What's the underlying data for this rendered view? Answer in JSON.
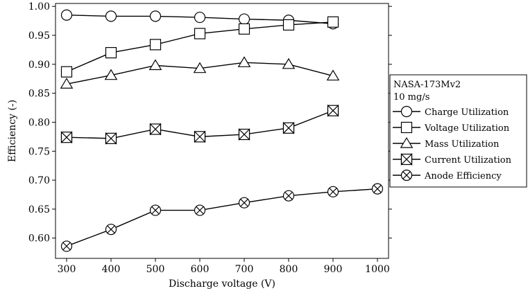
{
  "chart_data": {
    "type": "line",
    "xlabel": "Discharge voltage (V)",
    "ylabel": "Efficiency (-)",
    "xlim": [
      275,
      1025
    ],
    "ylim": [
      0.565,
      1.005
    ],
    "xticks": [
      300,
      400,
      500,
      600,
      700,
      800,
      900,
      1000
    ],
    "yticks": [
      0.6,
      0.65,
      0.7,
      0.75,
      0.8,
      0.85,
      0.9,
      0.95,
      1.0
    ],
    "legend": {
      "placement": "right",
      "title_lines": [
        "NASA-173Mv2",
        "10 mg/s"
      ]
    },
    "series": [
      {
        "name": "Charge Utilization",
        "marker": "circle",
        "x": [
          300,
          400,
          500,
          600,
          700,
          800,
          900
        ],
        "y": [
          0.985,
          0.983,
          0.983,
          0.981,
          0.978,
          0.976,
          0.97
        ]
      },
      {
        "name": "Voltage Utilization",
        "marker": "square",
        "x": [
          300,
          400,
          500,
          600,
          700,
          800,
          900
        ],
        "y": [
          0.887,
          0.92,
          0.934,
          0.953,
          0.961,
          0.968,
          0.973
        ]
      },
      {
        "name": "Mass Utilization",
        "marker": "triangle",
        "x": [
          300,
          400,
          500,
          600,
          700,
          800,
          900
        ],
        "y": [
          0.866,
          0.881,
          0.898,
          0.893,
          0.903,
          0.9,
          0.88
        ]
      },
      {
        "name": "Current Utilization",
        "marker": "boxx",
        "x": [
          300,
          400,
          500,
          600,
          700,
          800,
          900
        ],
        "y": [
          0.774,
          0.772,
          0.788,
          0.775,
          0.779,
          0.79,
          0.82
        ]
      },
      {
        "name": "Anode Efficiency",
        "marker": "circlex",
        "x": [
          300,
          400,
          500,
          600,
          700,
          800,
          900,
          1000
        ],
        "y": [
          0.586,
          0.615,
          0.648,
          0.648,
          0.661,
          0.673,
          0.68,
          0.685
        ]
      }
    ]
  }
}
